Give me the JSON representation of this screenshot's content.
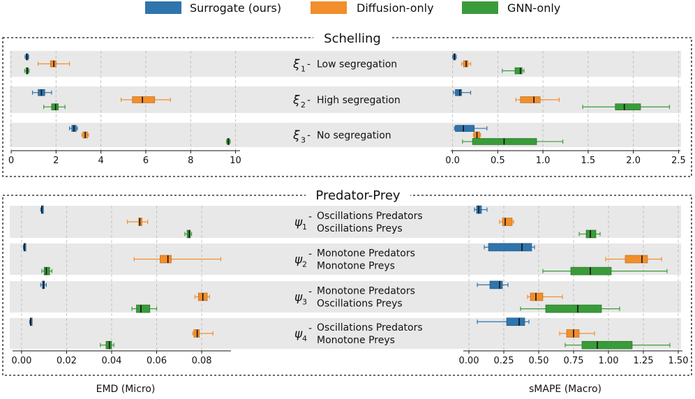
{
  "legend": [
    {
      "key": "surrogate",
      "label": "Surrogate (ours)",
      "color": "#2f74ac"
    },
    {
      "key": "diffusion",
      "label": "Diffusion-only",
      "color": "#f28e2b"
    },
    {
      "key": "gnn",
      "label": "GNN-only",
      "color": "#3a9b3a"
    }
  ],
  "xlabels": {
    "left": "EMD (Micro)",
    "right": "sMAPE (Macro)"
  },
  "chart_data": [
    {
      "type": "boxplot",
      "panel": "Schelling",
      "title": "Schelling",
      "scenarios": [
        {
          "symbol": "ξ",
          "sub": "1",
          "desc": [
            "Low segregation"
          ]
        },
        {
          "symbol": "ξ",
          "sub": "2",
          "desc": [
            "High segregation"
          ]
        },
        {
          "symbol": "ξ",
          "sub": "3",
          "desc": [
            "No segregation"
          ]
        }
      ],
      "left": {
        "xlabel": "EMD (Micro)",
        "xlim": [
          0,
          10.2
        ],
        "ticks": [
          0,
          2,
          4,
          6,
          8,
          10
        ],
        "tick_labels": [
          "0",
          "2",
          "4",
          "6",
          "8",
          "10"
        ],
        "boxes": [
          {
            "scenario": 0,
            "model": "surrogate",
            "whisker_low": 0.62,
            "q1": 0.66,
            "median": 0.7,
            "q3": 0.74,
            "whisker_high": 0.78
          },
          {
            "scenario": 0,
            "model": "diffusion",
            "whisker_low": 1.2,
            "q1": 1.75,
            "median": 1.9,
            "q3": 2.0,
            "whisker_high": 2.6
          },
          {
            "scenario": 0,
            "model": "gnn",
            "whisker_low": 0.6,
            "q1": 0.66,
            "median": 0.72,
            "q3": 0.76,
            "whisker_high": 0.8
          },
          {
            "scenario": 1,
            "model": "surrogate",
            "whisker_low": 0.95,
            "q1": 1.2,
            "median": 1.35,
            "q3": 1.5,
            "whisker_high": 1.8
          },
          {
            "scenario": 1,
            "model": "diffusion",
            "whisker_low": 4.9,
            "q1": 5.4,
            "median": 5.85,
            "q3": 6.4,
            "whisker_high": 7.1
          },
          {
            "scenario": 1,
            "model": "gnn",
            "whisker_low": 1.45,
            "q1": 1.8,
            "median": 1.98,
            "q3": 2.1,
            "whisker_high": 2.4
          },
          {
            "scenario": 2,
            "model": "surrogate",
            "whisker_low": 2.6,
            "q1": 2.7,
            "median": 2.8,
            "q3": 2.9,
            "whisker_high": 2.95
          },
          {
            "scenario": 2,
            "model": "diffusion",
            "whisker_low": 3.15,
            "q1": 3.2,
            "median": 3.3,
            "q3": 3.4,
            "whisker_high": 3.45
          },
          {
            "scenario": 2,
            "model": "gnn",
            "whisker_low": 9.6,
            "q1": 9.63,
            "median": 9.68,
            "q3": 9.73,
            "whisker_high": 9.76
          }
        ]
      },
      "right": {
        "xlabel": "sMAPE (Macro)",
        "xlim": [
          -0.02,
          2.52
        ],
        "ticks": [
          0,
          0.5,
          1,
          1.5,
          2,
          2.5
        ],
        "tick_labels": [
          "0.0",
          "0.5",
          "1.0",
          "1.5",
          "2.0",
          "2.5"
        ],
        "boxes": [
          {
            "scenario": 0,
            "model": "surrogate",
            "whisker_low": 0.0,
            "q1": 0.01,
            "median": 0.02,
            "q3": 0.03,
            "whisker_high": 0.04
          },
          {
            "scenario": 0,
            "model": "diffusion",
            "whisker_low": 0.1,
            "q1": 0.12,
            "median": 0.15,
            "q3": 0.17,
            "whisker_high": 0.2
          },
          {
            "scenario": 0,
            "model": "gnn",
            "whisker_low": 0.55,
            "q1": 0.69,
            "median": 0.75,
            "q3": 0.77,
            "whisker_high": 0.79
          },
          {
            "scenario": 1,
            "model": "surrogate",
            "whisker_low": 0.01,
            "q1": 0.03,
            "median": 0.08,
            "q3": 0.1,
            "whisker_high": 0.2
          },
          {
            "scenario": 1,
            "model": "diffusion",
            "whisker_low": 0.7,
            "q1": 0.75,
            "median": 0.9,
            "q3": 0.97,
            "whisker_high": 1.18
          },
          {
            "scenario": 1,
            "model": "gnn",
            "whisker_low": 1.44,
            "q1": 1.8,
            "median": 1.9,
            "q3": 2.08,
            "whisker_high": 2.4
          },
          {
            "scenario": 2,
            "model": "surrogate",
            "whisker_low": 0.02,
            "q1": 0.03,
            "median": 0.12,
            "q3": 0.24,
            "whisker_high": 0.38
          },
          {
            "scenario": 2,
            "model": "diffusion",
            "whisker_low": 0.23,
            "q1": 0.24,
            "median": 0.27,
            "q3": 0.3,
            "whisker_high": 0.31
          },
          {
            "scenario": 2,
            "model": "gnn",
            "whisker_low": 0.11,
            "q1": 0.22,
            "median": 0.57,
            "q3": 0.93,
            "whisker_high": 1.22
          }
        ]
      }
    },
    {
      "type": "boxplot",
      "panel": "Predator-Prey",
      "title": "Predator-Prey",
      "scenarios": [
        {
          "symbol": "ψ",
          "sub": "1",
          "desc": [
            "Oscillations Predators",
            "Oscillations Preys"
          ]
        },
        {
          "symbol": "ψ",
          "sub": "2",
          "desc": [
            "Monotone Predators",
            "Monotone Preys"
          ]
        },
        {
          "symbol": "ψ",
          "sub": "3",
          "desc": [
            "Monotone Predators",
            "Oscillations Preys"
          ]
        },
        {
          "symbol": "ψ",
          "sub": "4",
          "desc": [
            "Oscillations Predators",
            "Monotone Preys"
          ]
        }
      ],
      "left": {
        "xlabel": "EMD (Micro)",
        "xlim": [
          -0.004,
          0.093
        ],
        "ticks": [
          0,
          0.02,
          0.04,
          0.06,
          0.08
        ],
        "tick_labels": [
          "0.00",
          "0.02",
          "0.04",
          "0.06",
          "0.08"
        ],
        "boxes": [
          {
            "scenario": 0,
            "model": "surrogate",
            "whisker_low": 0.0085,
            "q1": 0.0088,
            "median": 0.009,
            "q3": 0.0092,
            "whisker_high": 0.0095
          },
          {
            "scenario": 0,
            "model": "diffusion",
            "whisker_low": 0.047,
            "q1": 0.052,
            "median": 0.0525,
            "q3": 0.0535,
            "whisker_high": 0.056
          },
          {
            "scenario": 0,
            "model": "gnn",
            "whisker_low": 0.0725,
            "q1": 0.0735,
            "median": 0.0745,
            "q3": 0.075,
            "whisker_high": 0.0755
          },
          {
            "scenario": 1,
            "model": "surrogate",
            "whisker_low": 0.0008,
            "q1": 0.001,
            "median": 0.0012,
            "q3": 0.0014,
            "whisker_high": 0.0016
          },
          {
            "scenario": 1,
            "model": "diffusion",
            "whisker_low": 0.05,
            "q1": 0.0615,
            "median": 0.065,
            "q3": 0.0665,
            "whisker_high": 0.0885
          },
          {
            "scenario": 1,
            "model": "gnn",
            "whisker_low": 0.009,
            "q1": 0.01,
            "median": 0.011,
            "q3": 0.0125,
            "whisker_high": 0.0135
          },
          {
            "scenario": 2,
            "model": "surrogate",
            "whisker_low": 0.0085,
            "q1": 0.0092,
            "median": 0.0098,
            "q3": 0.0102,
            "whisker_high": 0.011
          },
          {
            "scenario": 2,
            "model": "diffusion",
            "whisker_low": 0.077,
            "q1": 0.0785,
            "median": 0.0805,
            "q3": 0.0825,
            "whisker_high": 0.0835
          },
          {
            "scenario": 2,
            "model": "gnn",
            "whisker_low": 0.049,
            "q1": 0.051,
            "median": 0.053,
            "q3": 0.057,
            "whisker_high": 0.06
          },
          {
            "scenario": 3,
            "model": "surrogate",
            "whisker_low": 0.0036,
            "q1": 0.0038,
            "median": 0.004,
            "q3": 0.0042,
            "whisker_high": 0.0044
          },
          {
            "scenario": 3,
            "model": "diffusion",
            "whisker_low": 0.076,
            "q1": 0.0765,
            "median": 0.078,
            "q3": 0.079,
            "whisker_high": 0.085
          },
          {
            "scenario": 3,
            "model": "gnn",
            "whisker_low": 0.035,
            "q1": 0.0375,
            "median": 0.039,
            "q3": 0.04,
            "whisker_high": 0.041
          }
        ]
      },
      "right": {
        "xlabel": "sMAPE (Macro)",
        "xlim": [
          -0.04,
          1.53
        ],
        "ticks": [
          0,
          0.25,
          0.5,
          0.75,
          1,
          1.25,
          1.5
        ],
        "tick_labels": [
          "0.00",
          "0.25",
          "0.50",
          "0.75",
          "1.00",
          "1.25",
          "1.50"
        ],
        "boxes": [
          {
            "scenario": 0,
            "model": "surrogate",
            "whisker_low": 0.04,
            "q1": 0.055,
            "median": 0.07,
            "q3": 0.09,
            "whisker_high": 0.13
          },
          {
            "scenario": 0,
            "model": "diffusion",
            "whisker_low": 0.22,
            "q1": 0.24,
            "median": 0.26,
            "q3": 0.31,
            "whisker_high": 0.32
          },
          {
            "scenario": 0,
            "model": "gnn",
            "whisker_low": 0.79,
            "q1": 0.84,
            "median": 0.87,
            "q3": 0.91,
            "whisker_high": 0.94
          },
          {
            "scenario": 1,
            "model": "surrogate",
            "whisker_low": 0.11,
            "q1": 0.14,
            "median": 0.38,
            "q3": 0.45,
            "whisker_high": 0.47
          },
          {
            "scenario": 1,
            "model": "diffusion",
            "whisker_low": 0.98,
            "q1": 1.12,
            "median": 1.24,
            "q3": 1.28,
            "whisker_high": 1.38
          },
          {
            "scenario": 1,
            "model": "gnn",
            "whisker_low": 0.53,
            "q1": 0.73,
            "median": 0.87,
            "q3": 1.02,
            "whisker_high": 1.42
          },
          {
            "scenario": 2,
            "model": "surrogate",
            "whisker_low": 0.06,
            "q1": 0.15,
            "median": 0.22,
            "q3": 0.24,
            "whisker_high": 0.28
          },
          {
            "scenario": 2,
            "model": "diffusion",
            "whisker_low": 0.42,
            "q1": 0.44,
            "median": 0.48,
            "q3": 0.53,
            "whisker_high": 0.67
          },
          {
            "scenario": 2,
            "model": "gnn",
            "whisker_low": 0.37,
            "q1": 0.55,
            "median": 0.78,
            "q3": 0.95,
            "whisker_high": 1.08
          },
          {
            "scenario": 3,
            "model": "surrogate",
            "whisker_low": 0.06,
            "q1": 0.27,
            "median": 0.36,
            "q3": 0.4,
            "whisker_high": 0.43
          },
          {
            "scenario": 3,
            "model": "diffusion",
            "whisker_low": 0.65,
            "q1": 0.7,
            "median": 0.75,
            "q3": 0.79,
            "whisker_high": 0.9
          },
          {
            "scenario": 3,
            "model": "gnn",
            "whisker_low": 0.69,
            "q1": 0.81,
            "median": 0.92,
            "q3": 1.17,
            "whisker_high": 1.44
          }
        ]
      }
    }
  ]
}
